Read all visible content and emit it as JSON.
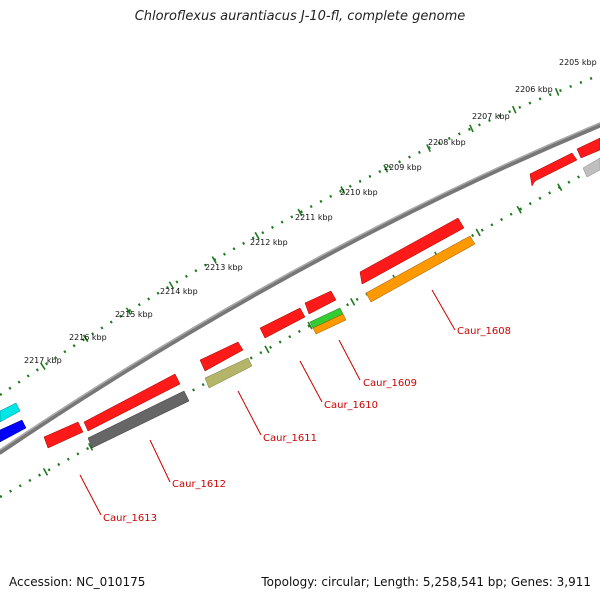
{
  "title": "Chloroflexus aurantiacus J-10-fl, complete genome",
  "footer": {
    "accession": "Accession: NC_010175",
    "genome_info": "Topology: circular; Length: 5,258,541 bp; Genes: 3,911"
  },
  "colors": {
    "backbone": "#8a8a8a",
    "ticks": "#1e7a1e",
    "gene_label": "#cc0000"
  },
  "kbp_ticks": [
    "2205 kbp",
    "2206 kbp",
    "2207 kbp",
    "2208 kbp",
    "2209 kbp",
    "2210 kbp",
    "2211 kbp",
    "2212 kbp",
    "2213 kbp",
    "2214 kbp",
    "2215 kbp",
    "2216 kbp",
    "2217 kbp"
  ],
  "features": [
    {
      "track": "cds",
      "color": "#ff1a1a"
    },
    {
      "track": "cds",
      "color": "#ff1a1a"
    },
    {
      "track": "cds",
      "color": "#ff1a1a"
    },
    {
      "track": "cds",
      "color": "#ff1a1a"
    },
    {
      "track": "cds",
      "color": "#ff1a1a"
    },
    {
      "track": "cds",
      "color": "#ff1a1a"
    },
    {
      "track": "cds",
      "color": "#ff1a1a"
    },
    {
      "track": "cds",
      "color": "#ff1a1a"
    },
    {
      "track": "cog",
      "color": "#ff9900"
    },
    {
      "track": "cog",
      "color": "#33cc33"
    },
    {
      "track": "cog",
      "color": "#ff9900"
    },
    {
      "track": "cog",
      "color": "#b5b56a"
    },
    {
      "track": "cog",
      "color": "#666666"
    },
    {
      "track": "cog",
      "color": "#bfbfbf"
    },
    {
      "track": "cog",
      "color": "#00e5e5"
    },
    {
      "track": "cog",
      "color": "#0000ff"
    }
  ],
  "gene_labels": [
    "Caur_1608",
    "Caur_1609",
    "Caur_1610",
    "Caur_1611",
    "Caur_1612",
    "Caur_1613"
  ]
}
